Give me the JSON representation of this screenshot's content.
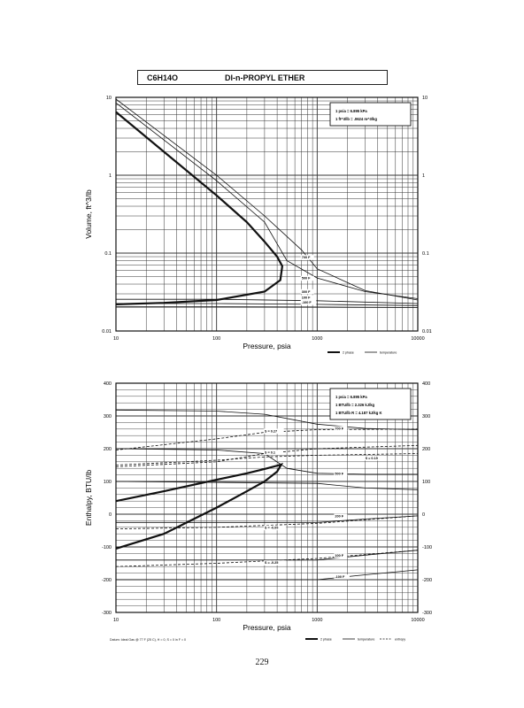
{
  "header": {
    "formula": "C6H14O",
    "name": "DI-n-PROPYL ETHER"
  },
  "page_number": "229",
  "chart_data": [
    {
      "type": "line",
      "xscale": "log",
      "yscale": "log",
      "xlim": [
        10,
        10000
      ],
      "ylim": [
        0.01,
        10
      ],
      "xlabel": "Pressure,  psia",
      "ylabel": "Volume,  ft^3/lb",
      "x_ticks": [
        "10",
        "100",
        "1000",
        "10000"
      ],
      "y_ticks": [
        "10",
        "1",
        "0.1",
        "0.01"
      ],
      "grid": true,
      "conversion_box": [
        "1 psia = 6.895 kPa",
        "1 ft^3/lb = .0624 m^3/kg"
      ],
      "legend": [
        "2 phase",
        "temperature"
      ],
      "series": [
        {
          "name": "2 phase",
          "style": "thick",
          "x": [
            10,
            30,
            100,
            200,
            300,
            400,
            450,
            430,
            300,
            100,
            30,
            10
          ],
          "y": [
            6.5,
            2.0,
            0.55,
            0.25,
            0.14,
            0.09,
            0.068,
            0.045,
            0.032,
            0.025,
            0.023,
            0.022
          ]
        },
        {
          "name": "700 F",
          "x": [
            10,
            100,
            300,
            700,
            1000,
            3000,
            10000
          ],
          "y": [
            9.5,
            1.0,
            0.3,
            0.11,
            0.063,
            0.033,
            0.025
          ]
        },
        {
          "name": "500 F",
          "x": [
            10,
            100,
            300,
            500,
            1000,
            3000,
            10000
          ],
          "y": [
            8.5,
            0.85,
            0.25,
            0.08,
            0.048,
            0.032,
            0.026
          ]
        },
        {
          "name": "300 F",
          "x": [
            10,
            100,
            1000,
            10000
          ],
          "y": [
            0.0255,
            0.0255,
            0.0245,
            0.0225
          ]
        },
        {
          "name": "100 F",
          "x": [
            10,
            100,
            1000,
            10000
          ],
          "y": [
            0.0225,
            0.0225,
            0.022,
            0.0212
          ]
        },
        {
          "name": "-100 F",
          "x": [
            10,
            100,
            1000,
            10000
          ],
          "y": [
            0.0205,
            0.0205,
            0.0203,
            0.02
          ]
        }
      ],
      "labels": [
        {
          "text": "700 F",
          "x": 700,
          "y": 0.085
        },
        {
          "text": "500 F",
          "x": 700,
          "y": 0.046
        },
        {
          "text": "300 F",
          "x": 700,
          "y": 0.031
        },
        {
          "text": "100 F",
          "x": 700,
          "y": 0.026
        },
        {
          "text": "-100 F",
          "x": 700,
          "y": 0.0225
        }
      ]
    },
    {
      "type": "line",
      "xscale": "log",
      "xlim": [
        10,
        10000
      ],
      "ylim": [
        -300,
        400
      ],
      "xlabel": "Pressure,  psia",
      "ylabel": "Enthalpy,  BTU/lb",
      "x_ticks": [
        "10",
        "100",
        "1000",
        "10000"
      ],
      "y_ticks": [
        "400",
        "300",
        "200",
        "100",
        "0",
        "-100",
        "-200",
        "-300"
      ],
      "grid": true,
      "conversion_box": [
        "1 psia = 6.895 kPa",
        "1 BTU/lb = 2.326 kJ/kg",
        "1 BTU/lb R = 4.187 kJ/kg K"
      ],
      "footnote": "Datum: Ideal Gas @ 77 F (25 C),  H = 0,  S = 0 in F = 0",
      "legend": [
        "2 phase",
        "temperature",
        "entropy"
      ],
      "series": [
        {
          "name": "2 phase",
          "style": "thick",
          "x": [
            10,
            30,
            100,
            200,
            300,
            400,
            440,
            400,
            300,
            200,
            100,
            30,
            10
          ],
          "y": [
            40,
            70,
            105,
            125,
            138,
            148,
            152,
            130,
            100,
            70,
            20,
            -60,
            -105
          ]
        },
        {
          "name": "700 F",
          "x": [
            10,
            100,
            300,
            1000,
            3000,
            10000
          ],
          "y": [
            318,
            315,
            305,
            275,
            262,
            258
          ]
        },
        {
          "name": "500 F",
          "x": [
            10,
            100,
            300,
            500,
            1000,
            3000,
            10000
          ],
          "y": [
            200,
            196,
            185,
            140,
            125,
            122,
            122
          ]
        },
        {
          "name": "300 F",
          "x": [
            10,
            100,
            1000,
            3000,
            10000
          ],
          "y": [
            100,
            97,
            94,
            80,
            75
          ]
        },
        {
          "name": "200 F",
          "x": [
            10,
            100,
            1000,
            3000,
            10000
          ],
          "y": [
            -25,
            -25,
            -25,
            -15,
            -5
          ]
        },
        {
          "name": "100 F",
          "x": [
            10,
            100,
            1000,
            3000,
            10000
          ],
          "y": [
            -140,
            -140,
            -140,
            -125,
            -110
          ]
        },
        {
          "name": "-100 F",
          "x": [
            10,
            100,
            1000,
            3000,
            10000
          ],
          "y": [
            -200,
            -200,
            -200,
            -185,
            -170
          ]
        },
        {
          "name": "S=0.27",
          "style": "dashed",
          "x": [
            10,
            100,
            300,
            1000,
            10000
          ],
          "y": [
            196,
            230,
            250,
            258,
            260
          ]
        },
        {
          "name": "S=0.1",
          "style": "dashed",
          "x": [
            10,
            100,
            300,
            1000,
            10000
          ],
          "y": [
            145,
            160,
            185,
            200,
            210
          ]
        },
        {
          "name": "S=0.15",
          "style": "dashed",
          "x": [
            10,
            100,
            300,
            1000,
            10000
          ],
          "y": [
            150,
            165,
            175,
            180,
            185
          ]
        },
        {
          "name": "S=-0.05",
          "style": "dashed",
          "x": [
            10,
            100,
            1000,
            10000
          ],
          "y": [
            -45,
            -40,
            -28,
            -5
          ]
        },
        {
          "name": "S=-0.25",
          "style": "dashed",
          "x": [
            10,
            100,
            1000,
            10000
          ],
          "y": [
            -160,
            -150,
            -135,
            -110
          ]
        }
      ],
      "labels": [
        {
          "text": "S = 0.27",
          "x": 300,
          "y": 250
        },
        {
          "text": "S = 0.1",
          "x": 300,
          "y": 185
        },
        {
          "text": "S = 0.15",
          "x": 3000,
          "y": 168
        },
        {
          "text": "700 F",
          "x": 1500,
          "y": 258
        },
        {
          "text": "500 F",
          "x": 1500,
          "y": 120
        },
        {
          "text": "200 F",
          "x": 1500,
          "y": -10
        },
        {
          "text": "S = -0.05",
          "x": 300,
          "y": -45
        },
        {
          "text": "100 F",
          "x": 1500,
          "y": -130
        },
        {
          "text": "S = -0.25",
          "x": 300,
          "y": -152
        },
        {
          "text": "-100 F",
          "x": 1500,
          "y": -195
        }
      ]
    }
  ]
}
